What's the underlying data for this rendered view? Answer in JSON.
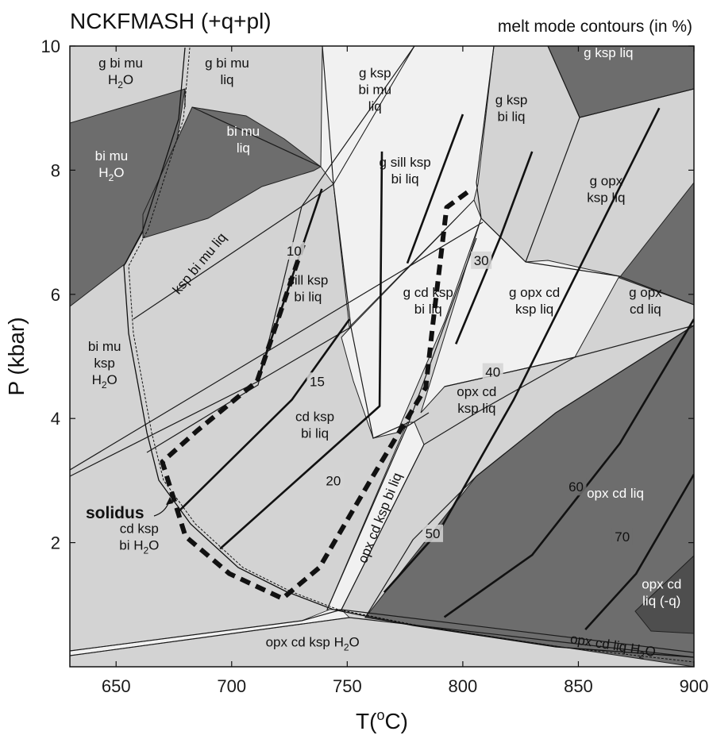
{
  "chart_data": {
    "type": "phase-diagram",
    "title": "NCKFMASH (+q+pl)",
    "subtitle": "melt mode contours (in %)",
    "xlabel_prefix": "T(",
    "xlabel_sup": "o",
    "xlabel_suffix": "C)",
    "ylabel": "P (kbar)",
    "xlim": [
      630,
      900
    ],
    "ylim": [
      0,
      10
    ],
    "x_ticks": [
      650,
      700,
      750,
      800,
      850,
      900
    ],
    "y_ticks": [
      2,
      4,
      6,
      8,
      10
    ],
    "solidus_label": "solidus",
    "colors": {
      "white": "#ffffff",
      "light": "#f1f1f1",
      "medium": "#d3d3d3",
      "dark": "#6d6d6d",
      "darker": "#4e4e4e"
    },
    "fields": [
      {
        "lines": [
          "g bi mu",
          "H2O"
        ],
        "T": 652,
        "P": 9.6,
        "shade": "medium"
      },
      {
        "lines": [
          "g bi mu",
          "liq"
        ],
        "T": 698,
        "P": 9.6,
        "shade": "medium"
      },
      {
        "lines": [
          "g ksp",
          "bi mu",
          "liq"
        ],
        "T": 762,
        "P": 9.3,
        "shade": "light"
      },
      {
        "lines": [
          "g ksp",
          "bi liq"
        ],
        "T": 821,
        "P": 9.0,
        "shade": "medium"
      },
      {
        "lines": [
          "g ksp liq"
        ],
        "T": 863,
        "P": 9.9,
        "shade": "dark",
        "text_color": "#ffffff"
      },
      {
        "lines": [
          "bi mu",
          "H2O"
        ],
        "T": 648,
        "P": 8.1,
        "shade": "dark",
        "text_color": "#ffffff"
      },
      {
        "lines": [
          "bi mu",
          "liq"
        ],
        "T": 705,
        "P": 8.5,
        "shade": "dark",
        "text_color": "#ffffff"
      },
      {
        "lines": [
          "g sill ksp",
          "bi liq"
        ],
        "T": 775,
        "P": 8.0,
        "shade": "light"
      },
      {
        "lines": [
          "g opx",
          "ksp liq"
        ],
        "T": 862,
        "P": 7.7,
        "shade": "medium"
      },
      {
        "lines": [
          "sill ksp",
          "bi liq"
        ],
        "T": 733,
        "P": 6.1,
        "shade": "medium"
      },
      {
        "lines": [
          "g cd ksp",
          "bi liq"
        ],
        "T": 785,
        "P": 5.9,
        "shade": "light"
      },
      {
        "lines": [
          "g opx cd",
          "ksp liq"
        ],
        "T": 831,
        "P": 5.9,
        "shade": "light"
      },
      {
        "lines": [
          "g opx",
          "cd liq"
        ],
        "T": 879,
        "P": 5.9,
        "shade": "medium"
      },
      {
        "lines": [
          "bi mu",
          "ksp",
          "H2O"
        ],
        "T": 645,
        "P": 4.9,
        "shade": "medium"
      },
      {
        "lines": [
          "opx cd",
          "ksp liq"
        ],
        "T": 806,
        "P": 4.3,
        "shade": "medium"
      },
      {
        "lines": [
          "cd ksp",
          "bi liq"
        ],
        "T": 736,
        "P": 3.9,
        "shade": "medium"
      },
      {
        "lines": [
          "opx cd liq"
        ],
        "T": 866,
        "P": 2.8,
        "shade": "dark",
        "text_color": "#ffffff"
      },
      {
        "lines": [
          "cd ksp",
          "bi H2O"
        ],
        "T": 660,
        "P": 2.1,
        "shade": "medium"
      },
      {
        "lines": [
          "opx cd",
          "liq (-q)"
        ],
        "T": 886,
        "P": 1.2,
        "shade": "darker",
        "text_color": "#ffffff"
      },
      {
        "lines": [
          "opx cd ksp H2O"
        ],
        "T": 735,
        "P": 0.4,
        "shade": "medium"
      },
      {
        "lines": [
          "opx cd liq H2O"
        ],
        "T": 865,
        "P": 0.35,
        "shade": "medium",
        "rotate": 9
      },
      {
        "lines": [
          "ksp bi mu liq"
        ],
        "T": 686,
        "P": 6.5,
        "shade": "medium",
        "rotate": -50
      },
      {
        "lines": [
          "opx cd ksp bi liq"
        ],
        "T": 764,
        "P": 2.4,
        "shade": "light",
        "rotate": -68
      }
    ],
    "melt_contours": [
      {
        "label": "10",
        "value": 10,
        "label_T": 727,
        "label_P": 6.7,
        "points": [
          [
            711,
            4.6
          ],
          [
            739,
            7.7
          ]
        ]
      },
      {
        "label": "15",
        "value": 15,
        "label_T": 737,
        "label_P": 4.6,
        "points": [
          [
            677,
            2.5
          ],
          [
            726,
            4.3
          ],
          [
            751,
            5.6
          ]
        ]
      },
      {
        "label": "20",
        "value": 20,
        "label_T": 744,
        "label_P": 3.0,
        "points": [
          [
            695,
            1.9
          ],
          [
            731,
            3.1
          ],
          [
            764,
            4.2
          ],
          [
            765,
            8.3
          ]
        ]
      },
      {
        "label": "30",
        "value": 30,
        "label_T": 808,
        "label_P": 6.55,
        "points": [
          [
            776,
            6.5
          ],
          [
            800,
            8.9
          ]
        ]
      },
      {
        "label": "40",
        "value": 40,
        "label_T": 813,
        "label_P": 4.75,
        "points": [
          [
            797,
            5.2
          ],
          [
            816,
            6.9
          ],
          [
            830,
            8.3
          ]
        ]
      },
      {
        "label": "50",
        "value": 50,
        "label_T": 787,
        "label_P": 2.15,
        "points": [
          [
            766,
            1.2
          ],
          [
            790,
            2.2
          ],
          [
            822,
            4.3
          ],
          [
            885,
            9.0
          ]
        ]
      },
      {
        "label": "60",
        "value": 60,
        "label_T": 849,
        "label_P": 2.9,
        "points": [
          [
            792,
            0.8
          ],
          [
            830,
            1.8
          ],
          [
            868,
            3.6
          ],
          [
            900,
            5.6
          ]
        ]
      },
      {
        "label": "70",
        "value": 70,
        "label_T": 869,
        "label_P": 2.1,
        "points": [
          [
            853,
            0.6
          ],
          [
            875,
            1.5
          ],
          [
            900,
            3.1
          ]
        ]
      }
    ],
    "dashed_contours": [
      {
        "points": [
          [
            731,
            6.8
          ],
          [
            711,
            4.6
          ],
          [
            685,
            3.8
          ],
          [
            670,
            3.3
          ],
          [
            680,
            2.1
          ],
          [
            699,
            1.5
          ],
          [
            722,
            1.1
          ],
          [
            738,
            1.6
          ],
          [
            760,
            3.0
          ],
          [
            784,
            4.5
          ],
          [
            787,
            5.5
          ],
          [
            793,
            7.4
          ],
          [
            804,
            7.7
          ]
        ]
      }
    ]
  }
}
